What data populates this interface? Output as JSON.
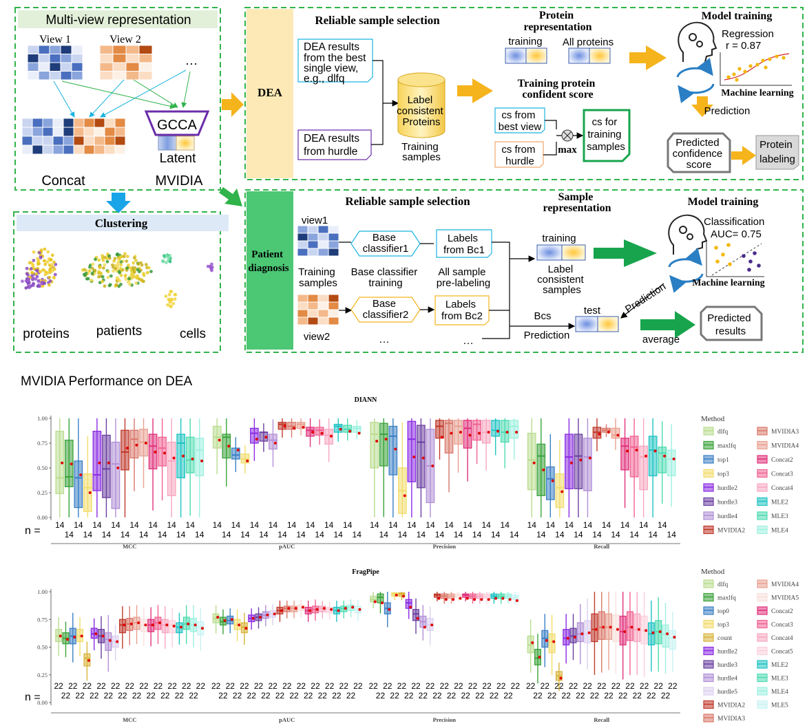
{
  "top": {
    "multiview": {
      "title": "Multi-view representation",
      "view1": "View 1",
      "view2": "View 2",
      "dots": "…",
      "gcca": "GCCA",
      "latent": "Latent",
      "concat": "Concat",
      "mvidia": "MVIDIA"
    },
    "clustering": {
      "title": "Clustering",
      "labels": [
        "proteins",
        "patients",
        "cells"
      ]
    },
    "dea": {
      "tag": "DEA",
      "rss_title": "Reliable sample selection",
      "box1": [
        "DEA results",
        "from the best",
        "single view,",
        "e.g., dlfq"
      ],
      "box2": [
        "DEA results",
        "from hurdle"
      ],
      "cyl": [
        "Label",
        "consistent",
        "Proteins"
      ],
      "training_samples": [
        "Training",
        "samples"
      ],
      "prot_rep_title": [
        "Protein",
        "representation"
      ],
      "training": "training",
      "all_proteins": "All  proteins",
      "conf_title": [
        "Training protein",
        "confident score"
      ],
      "cs_best": [
        "cs from",
        "best view"
      ],
      "cs_hurdle": [
        "cs from",
        "hurdle"
      ],
      "max": "max",
      "cs_training": [
        "cs for",
        "training",
        "samples"
      ],
      "model_title": "Model training",
      "regression": [
        "Regression",
        "r = 0.87"
      ],
      "ml": "Machine learning",
      "prediction": "Prediction",
      "predicted": [
        "Predicted",
        "confidence",
        "score"
      ],
      "labeling": [
        "Protein",
        "labeling"
      ]
    },
    "patient": {
      "tag": [
        "Patient",
        "diagnosis"
      ],
      "rss_title": "Reliable sample selection",
      "view1": "view1",
      "view2": "view2",
      "training_samples": [
        "Training",
        "samples"
      ],
      "bc1": [
        "Base",
        "classifier1"
      ],
      "bc2": [
        "Base",
        "classifier2"
      ],
      "bct": [
        "Base classifier",
        "training"
      ],
      "labels1": [
        "Labels",
        "from Bc1"
      ],
      "labels2": [
        "Labels",
        "from Bc2"
      ],
      "prelabel": [
        "All sample",
        "pre-labeling"
      ],
      "ellipsis": "…",
      "sample_rep": [
        "Sample",
        "representation"
      ],
      "training": "training",
      "lcs": [
        "Label",
        "consistent",
        "samples"
      ],
      "test": "test",
      "bcs": "Bcs",
      "prediction": "Prediction",
      "model_title": "Model training",
      "classification": [
        "Classification",
        "AUC= 0.75"
      ],
      "ml": "Machine learning",
      "prediction2": "Prediction",
      "average": "average",
      "predicted": [
        "Predicted",
        "results"
      ]
    }
  },
  "perf_title": "MVIDIA Performance on DEA",
  "legend_title": "Method",
  "colors": {
    "dlfq": "#b9dc8e",
    "maxlfq": "#3aa33a",
    "top1": "#3b7fc4",
    "top0": "#3b7fc4",
    "top3": "#f2dc6b",
    "count": "#d9b43a",
    "hurdle2": "#8a2be2",
    "hurdle3": "#6b3fa0",
    "hurdle4": "#b18fd6",
    "hurdle5": "#dcd0f0",
    "MVIDIA2": "#c0392b",
    "MVIDIA3": "#d9786a",
    "MVIDIA4": "#e8a090",
    "MVIDIA5": "#f8e0dc",
    "Concat2": "#e0317a",
    "Concat3": "#f06292",
    "Concat4": "#f7a6c0",
    "Concat5": "#fbd0dc",
    "MLE2": "#1fc2c2",
    "MLE3": "#4ddbb0",
    "MLE4": "#9ef0e0",
    "MLE5": "#c9f3f3"
  },
  "chart_data": [
    {
      "type": "box",
      "title": "DIANN",
      "ylim": [
        0,
        1
      ],
      "ylabel_ticks": [
        "0.00",
        "0.25",
        "0.50",
        "0.75",
        "1.00"
      ],
      "categories": [
        "MCC",
        "pAUC",
        "Precision",
        "Recall"
      ],
      "n_prefix": "n =",
      "n": 14,
      "methods": [
        "dlfq",
        "maxlfq",
        "top1",
        "top3",
        "hurdle2",
        "hurdle3",
        "hurdle4",
        "MVIDIA2",
        "MVIDIA3",
        "MVIDIA4",
        "Concat2",
        "Concat3",
        "Concat4",
        "MLE2",
        "MLE3",
        "MLE4"
      ],
      "series": [
        {
          "metric": "MCC",
          "medians": [
            0.4,
            0.41,
            0.4,
            0.3,
            0.43,
            0.49,
            0.54,
            0.66,
            0.79,
            0.76,
            0.72,
            0.7,
            0.57,
            0.75,
            0.58,
            0.68
          ],
          "q1": [
            0.24,
            0.31,
            0.1,
            0.06,
            0.27,
            0.2,
            0.09,
            0.48,
            0.6,
            0.62,
            0.49,
            0.52,
            0.22,
            0.4,
            0.45,
            0.42
          ],
          "q3": [
            0.87,
            0.78,
            0.57,
            0.44,
            0.87,
            0.83,
            0.76,
            0.88,
            0.88,
            0.89,
            0.84,
            0.81,
            0.76,
            0.84,
            0.81,
            0.8
          ],
          "means": [
            0.55,
            0.54,
            0.43,
            0.25,
            0.55,
            0.55,
            0.5,
            0.7,
            0.73,
            0.75,
            0.66,
            0.65,
            0.6,
            0.62,
            0.59,
            0.57
          ]
        },
        {
          "metric": "pAUC",
          "medians": [
            0.81,
            0.81,
            0.63,
            0.59,
            0.85,
            0.86,
            0.78,
            0.94,
            0.92,
            0.94,
            0.88,
            0.88,
            0.83,
            0.92,
            0.89,
            0.9
          ],
          "q1": [
            0.7,
            0.6,
            0.59,
            0.55,
            0.75,
            0.77,
            0.69,
            0.89,
            0.89,
            0.9,
            0.82,
            0.83,
            0.74,
            0.86,
            0.86,
            0.86
          ],
          "q3": [
            0.92,
            0.84,
            0.7,
            0.64,
            0.9,
            0.86,
            0.84,
            0.96,
            0.96,
            0.96,
            0.91,
            0.91,
            0.89,
            0.94,
            0.93,
            0.92
          ],
          "means": [
            0.78,
            0.72,
            0.68,
            0.57,
            0.79,
            0.81,
            0.75,
            0.92,
            0.9,
            0.91,
            0.86,
            0.85,
            0.82,
            0.89,
            0.87,
            0.85
          ]
        },
        {
          "metric": "Precision",
          "medians": [
            0.84,
            0.84,
            0.82,
            0.27,
            0.79,
            0.76,
            0.52,
            0.92,
            0.95,
            0.92,
            0.9,
            0.94,
            0.86,
            0.88,
            0.86,
            0.92
          ],
          "q1": [
            0.5,
            0.52,
            0.43,
            0.04,
            0.36,
            0.3,
            0.15,
            0.8,
            0.65,
            0.74,
            0.7,
            0.78,
            0.75,
            0.82,
            0.76,
            0.8
          ],
          "q3": [
            0.96,
            0.95,
            0.92,
            0.5,
            0.97,
            0.93,
            0.89,
            0.98,
            0.98,
            0.98,
            0.98,
            0.98,
            0.98,
            0.98,
            0.98,
            0.98
          ],
          "means": [
            0.77,
            0.79,
            0.69,
            0.22,
            0.61,
            0.6,
            0.52,
            0.81,
            0.85,
            0.86,
            0.83,
            0.85,
            0.86,
            0.87,
            0.86,
            0.86
          ]
        },
        {
          "metric": "Recall",
          "medians": [
            0.58,
            0.62,
            0.39,
            0.3,
            0.61,
            0.62,
            0.61,
            0.86,
            0.88,
            0.83,
            0.72,
            0.71,
            0.61,
            0.68,
            0.65,
            0.59
          ],
          "q1": [
            0.28,
            0.22,
            0.18,
            0.1,
            0.29,
            0.29,
            0.27,
            0.8,
            0.86,
            0.8,
            0.48,
            0.41,
            0.28,
            0.42,
            0.45,
            0.42
          ],
          "q3": [
            0.85,
            0.74,
            0.51,
            0.44,
            0.84,
            0.84,
            0.8,
            0.91,
            0.9,
            0.9,
            0.8,
            0.82,
            0.72,
            0.82,
            0.71,
            0.68
          ],
          "means": [
            0.55,
            0.48,
            0.37,
            0.26,
            0.55,
            0.58,
            0.6,
            0.84,
            0.86,
            0.83,
            0.67,
            0.68,
            0.62,
            0.67,
            0.62,
            0.59
          ]
        }
      ]
    },
    {
      "type": "box",
      "title": "FragPipe",
      "ylim": [
        0,
        1
      ],
      "ylabel_ticks": [
        "0.00",
        "0.25",
        "0.50",
        "0.75",
        "1.00"
      ],
      "categories": [
        "MCC",
        "pAUC",
        "Precision",
        "Recall"
      ],
      "n_prefix": "n =",
      "n": 22,
      "methods": [
        "dlfq",
        "maxlfq",
        "top0",
        "top3",
        "count",
        "hurdle2",
        "hurdle3",
        "hurdle4",
        "hurdle5",
        "MVIDIA2",
        "MVIDIA3",
        "MVIDIA4",
        "MVIDIA5",
        "Concat2",
        "Concat3",
        "Concat4",
        "Concat5",
        "MLE2",
        "MLE3",
        "MLE4",
        "MLE5"
      ],
      "series": [
        {
          "metric": "MCC",
          "medians": [
            0.6,
            0.58,
            0.6,
            0.6,
            0.4,
            0.62,
            0.6,
            0.57,
            0.55,
            0.7,
            0.71,
            0.72,
            0.7,
            0.7,
            0.72,
            0.7,
            0.7,
            0.68,
            0.71,
            0.7,
            0.68
          ],
          "q1": [
            0.55,
            0.53,
            0.53,
            0.55,
            0.33,
            0.58,
            0.54,
            0.47,
            0.5,
            0.63,
            0.65,
            0.66,
            0.64,
            0.64,
            0.66,
            0.63,
            0.63,
            0.63,
            0.66,
            0.64,
            0.61
          ],
          "q3": [
            0.66,
            0.63,
            0.67,
            0.66,
            0.44,
            0.67,
            0.66,
            0.63,
            0.6,
            0.75,
            0.76,
            0.77,
            0.75,
            0.75,
            0.77,
            0.75,
            0.74,
            0.72,
            0.77,
            0.76,
            0.73
          ],
          "means": [
            0.6,
            0.57,
            0.59,
            0.6,
            0.38,
            0.62,
            0.6,
            0.56,
            0.55,
            0.7,
            0.71,
            0.72,
            0.7,
            0.7,
            0.72,
            0.7,
            0.69,
            0.68,
            0.71,
            0.7,
            0.67
          ]
        },
        {
          "metric": "pAUC",
          "medians": [
            0.76,
            0.73,
            0.74,
            0.7,
            0.68,
            0.76,
            0.77,
            0.79,
            0.8,
            0.83,
            0.85,
            0.85,
            0.86,
            0.83,
            0.84,
            0.85,
            0.84,
            0.83,
            0.85,
            0.86,
            0.84
          ],
          "q1": [
            0.72,
            0.7,
            0.71,
            0.66,
            0.63,
            0.73,
            0.74,
            0.76,
            0.77,
            0.8,
            0.82,
            0.82,
            0.83,
            0.8,
            0.81,
            0.82,
            0.81,
            0.8,
            0.82,
            0.83,
            0.81
          ],
          "q3": [
            0.8,
            0.77,
            0.78,
            0.75,
            0.72,
            0.79,
            0.8,
            0.82,
            0.83,
            0.86,
            0.87,
            0.87,
            0.88,
            0.86,
            0.87,
            0.87,
            0.86,
            0.86,
            0.87,
            0.88,
            0.87
          ],
          "means": [
            0.77,
            0.74,
            0.75,
            0.7,
            0.67,
            0.76,
            0.77,
            0.79,
            0.8,
            0.83,
            0.85,
            0.85,
            0.86,
            0.83,
            0.84,
            0.85,
            0.84,
            0.83,
            0.85,
            0.86,
            0.84
          ]
        },
        {
          "metric": "Precision",
          "medians": [
            0.93,
            0.95,
            0.85,
            0.98,
            0.98,
            0.9,
            0.8,
            0.73,
            0.7,
            0.97,
            0.96,
            0.96,
            0.97,
            0.97,
            0.96,
            0.96,
            0.96,
            0.96,
            0.96,
            0.96,
            0.95
          ],
          "q1": [
            0.91,
            0.9,
            0.8,
            0.96,
            0.96,
            0.85,
            0.74,
            0.68,
            0.65,
            0.95,
            0.94,
            0.94,
            0.95,
            0.95,
            0.94,
            0.94,
            0.94,
            0.94,
            0.94,
            0.94,
            0.93
          ],
          "q3": [
            0.96,
            0.98,
            0.9,
            0.99,
            0.99,
            0.93,
            0.84,
            0.78,
            0.76,
            0.98,
            0.98,
            0.98,
            0.98,
            0.98,
            0.98,
            0.98,
            0.98,
            0.98,
            0.98,
            0.98,
            0.97
          ],
          "means": [
            0.91,
            0.9,
            0.84,
            0.97,
            0.96,
            0.86,
            0.76,
            0.68,
            0.7,
            0.94,
            0.93,
            0.93,
            0.94,
            0.94,
            0.93,
            0.93,
            0.93,
            0.94,
            0.94,
            0.93,
            0.92
          ]
        },
        {
          "metric": "Recall",
          "medians": [
            0.52,
            0.4,
            0.58,
            0.55,
            0.24,
            0.58,
            0.6,
            0.62,
            0.62,
            0.66,
            0.68,
            0.68,
            0.66,
            0.64,
            0.68,
            0.66,
            0.65,
            0.62,
            0.64,
            0.62,
            0.58
          ],
          "q1": [
            0.45,
            0.34,
            0.5,
            0.45,
            0.2,
            0.52,
            0.54,
            0.55,
            0.54,
            0.55,
            0.57,
            0.57,
            0.55,
            0.52,
            0.56,
            0.55,
            0.53,
            0.52,
            0.53,
            0.5,
            0.48
          ],
          "q3": [
            0.6,
            0.48,
            0.65,
            0.62,
            0.28,
            0.66,
            0.67,
            0.72,
            0.74,
            0.8,
            0.82,
            0.8,
            0.79,
            0.78,
            0.82,
            0.8,
            0.78,
            0.72,
            0.74,
            0.7,
            0.65
          ],
          "means": [
            0.54,
            0.41,
            0.56,
            0.55,
            0.22,
            0.58,
            0.59,
            0.62,
            0.63,
            0.66,
            0.68,
            0.68,
            0.66,
            0.64,
            0.68,
            0.66,
            0.65,
            0.63,
            0.64,
            0.62,
            0.59
          ]
        }
      ]
    }
  ]
}
